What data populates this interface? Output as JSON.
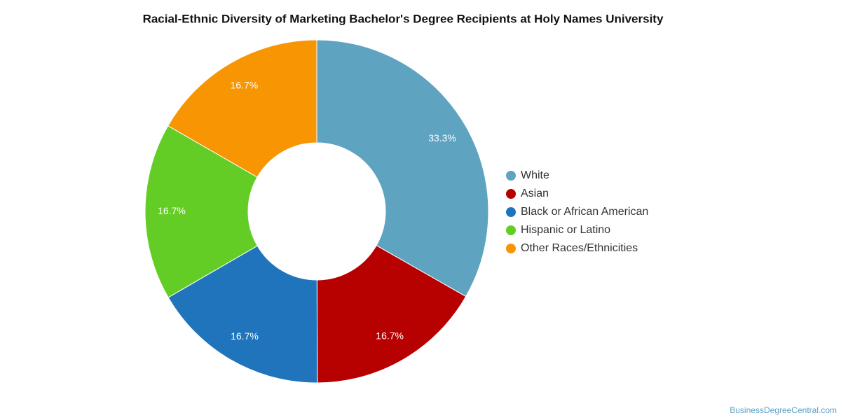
{
  "chart_data": {
    "type": "donut",
    "title": "Racial-Ethnic Diversity of Marketing Bachelor's Degree Recipients at Holy Names University",
    "categories": [
      "White",
      "Asian",
      "Black or African American",
      "Hispanic or Latino",
      "Other Races/Ethnicities"
    ],
    "values": [
      33.3,
      16.7,
      16.7,
      16.7,
      16.7
    ],
    "value_labels": [
      "33.3%",
      "16.7%",
      "16.7%",
      "16.7%",
      "16.7%"
    ],
    "colors": [
      "#5ea3c0",
      "#b70000",
      "#1f74bb",
      "#63cd25",
      "#f79503"
    ],
    "legend": "right",
    "source": "BusinessDegreeCentral.com"
  }
}
